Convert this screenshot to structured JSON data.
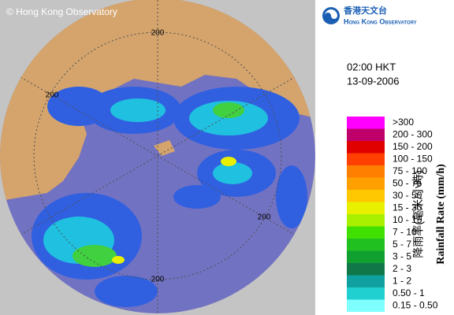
{
  "header": {
    "copyright": "© Hong Kong Observatory",
    "logo_chinese": "香港天文台",
    "logo_english": "Hong Kong Observatory",
    "time": "02:00 HKT",
    "date": "13-09-2006"
  },
  "map": {
    "ring_labels": [
      "200",
      "200",
      "200",
      "200"
    ]
  },
  "legend": {
    "title_chinese": "降雨率(毫米/小時)",
    "title_english": "Rainfall Rate (mm/h)",
    "items": [
      {
        "label": ">300",
        "color": "#ff00ff"
      },
      {
        "label": "200 - 300",
        "color": "#c0006a"
      },
      {
        "label": "150 - 200",
        "color": "#e00000"
      },
      {
        "label": "100 - 150",
        "color": "#ff4000"
      },
      {
        "label": "75 - 100",
        "color": "#ff8000"
      },
      {
        "label": "50 - 75",
        "color": "#ffa000"
      },
      {
        "label": "30 - 50",
        "color": "#ffc800"
      },
      {
        "label": "15 - 30",
        "color": "#e8f000"
      },
      {
        "label": "10 - 15",
        "color": "#a8f000"
      },
      {
        "label": "7 - 10",
        "color": "#40e000"
      },
      {
        "label": "5 - 7",
        "color": "#20c020"
      },
      {
        "label": "3 - 5",
        "color": "#10a030"
      },
      {
        "label": "2 - 3",
        "color": "#107848"
      },
      {
        "label": "1 - 2",
        "color": "#10a0a0"
      },
      {
        "label": "0.50 - 1",
        "color": "#20d0d0"
      },
      {
        "label": "0.15 - 0.50",
        "color": "#80ffff"
      }
    ]
  }
}
